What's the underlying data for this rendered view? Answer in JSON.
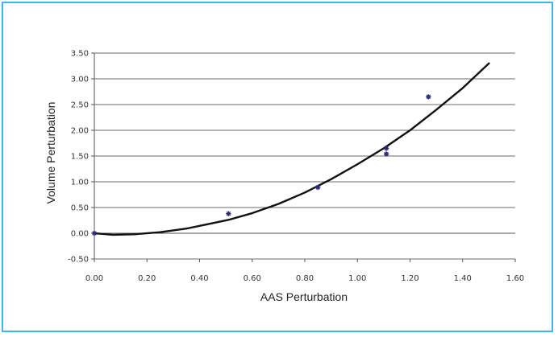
{
  "chart_data": {
    "type": "scatter",
    "title": "",
    "xlabel": "AAS Perturbation",
    "ylabel": "Volume Perturbation",
    "xlim": [
      0,
      1.6
    ],
    "ylim": [
      -0.5,
      3.5
    ],
    "x_ticks": [
      "0.00",
      "0.20",
      "0.40",
      "0.60",
      "0.80",
      "1.00",
      "1.20",
      "1.40",
      "1.60"
    ],
    "y_ticks": [
      "-0.50",
      "0.00",
      "0.50",
      "1.00",
      "1.50",
      "2.00",
      "2.50",
      "3.00",
      "3.50"
    ],
    "grid": "horizontal",
    "legend": "none",
    "series": [
      {
        "type": "scatter",
        "marker": "asterisk",
        "color": "#2a2a7a",
        "points": [
          {
            "x": 0.0,
            "y": 0.0
          },
          {
            "x": 0.51,
            "y": 0.38
          },
          {
            "x": 0.85,
            "y": 0.89
          },
          {
            "x": 1.11,
            "y": 1.65
          },
          {
            "x": 1.11,
            "y": 1.54
          },
          {
            "x": 1.27,
            "y": 2.65
          }
        ]
      },
      {
        "type": "line",
        "color": "#111111",
        "points": [
          {
            "x": 0.0,
            "y": 0.0
          },
          {
            "x": 0.07,
            "y": -0.03
          },
          {
            "x": 0.15,
            "y": -0.02
          },
          {
            "x": 0.25,
            "y": 0.02
          },
          {
            "x": 0.35,
            "y": 0.09
          },
          {
            "x": 0.51,
            "y": 0.26
          },
          {
            "x": 0.6,
            "y": 0.39
          },
          {
            "x": 0.7,
            "y": 0.57
          },
          {
            "x": 0.8,
            "y": 0.79
          },
          {
            "x": 0.9,
            "y": 1.05
          },
          {
            "x": 1.0,
            "y": 1.34
          },
          {
            "x": 1.1,
            "y": 1.65
          },
          {
            "x": 1.2,
            "y": 2.0
          },
          {
            "x": 1.3,
            "y": 2.4
          },
          {
            "x": 1.4,
            "y": 2.82
          },
          {
            "x": 1.5,
            "y": 3.3
          }
        ]
      }
    ]
  }
}
